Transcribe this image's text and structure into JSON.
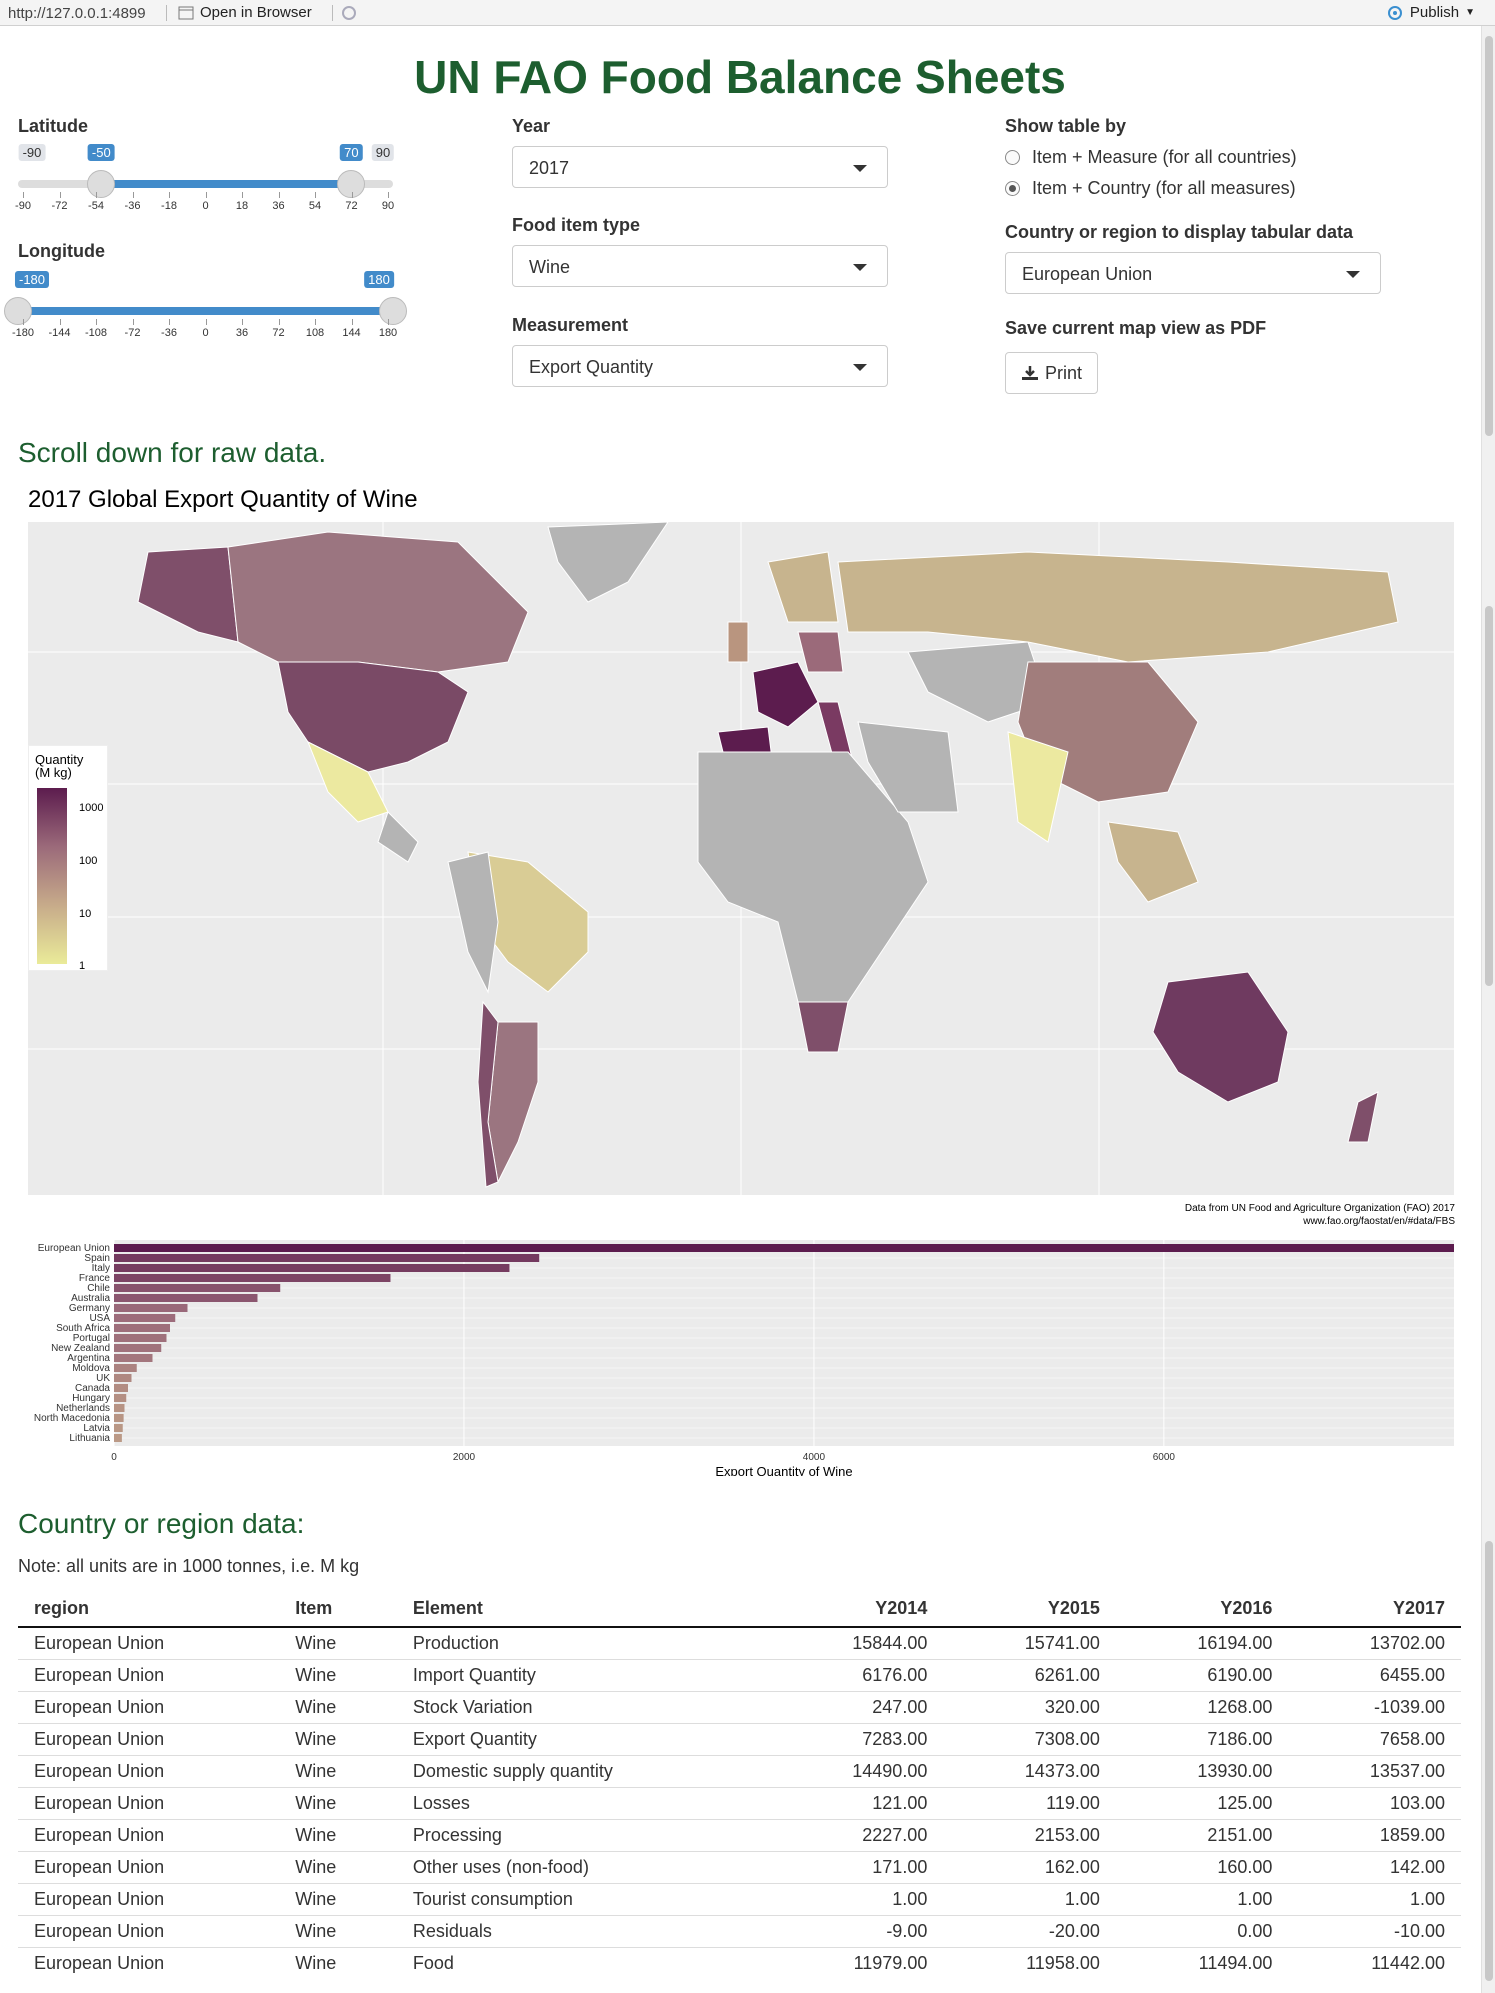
{
  "toolbar": {
    "url": "http://127.0.0.1:4899",
    "open_label": "Open in Browser",
    "publish_label": "Publish"
  },
  "title": "UN FAO Food Balance Sheets",
  "latitude": {
    "label": "Latitude",
    "min": -90,
    "max": 90,
    "low": -50,
    "high": 70,
    "ticks": [
      "-90",
      "-72",
      "-54",
      "-36",
      "-18",
      "0",
      "18",
      "36",
      "54",
      "72",
      "90"
    ],
    "min_label": "-90",
    "max_label": "90",
    "low_label": "-50",
    "high_label": "70"
  },
  "longitude": {
    "label": "Longitude",
    "min": -180,
    "max": 180,
    "low": -180,
    "high": 180,
    "ticks": [
      "-180",
      "-144",
      "-108",
      "-72",
      "-36",
      "0",
      "36",
      "72",
      "108",
      "144",
      "180"
    ],
    "low_label": "-180",
    "high_label": "180"
  },
  "year": {
    "label": "Year",
    "value": "2017"
  },
  "food_item": {
    "label": "Food item type",
    "value": "Wine"
  },
  "measurement": {
    "label": "Measurement",
    "value": "Export Quantity"
  },
  "show_table": {
    "label": "Show table by",
    "options": [
      "Item + Measure (for all countries)",
      "Item + Country (for all measures)"
    ],
    "selected": 1
  },
  "country": {
    "label": "Country or region to display tabular data",
    "value": "European Union"
  },
  "save": {
    "label": "Save current map view as PDF",
    "button": "Print"
  },
  "scroll_note": "Scroll down for raw data.",
  "map": {
    "title": "2017 Global Export Quantity of Wine",
    "caption_line1": "Data from UN Food and Agriculture Organization (FAO) 2017",
    "caption_line2": "www.fao.org/faostat/en/#data/FBS",
    "legend": {
      "title_line1": "Quantity",
      "title_line2": "(M kg)",
      "levels": [
        "1000",
        "100",
        "10",
        "1"
      ]
    },
    "colors": {
      "ocean": "#ebebeb",
      "no_data": "#b4b4b4",
      "high": "#5c1c4e",
      "mid": "#9b6a7a",
      "low": "#c7b48e",
      "lowest": "#eaeb99"
    }
  },
  "chart_data": {
    "type": "bar",
    "orientation": "horizontal",
    "xlabel": "Export Quantity of Wine",
    "xticks": [
      "0",
      "2000",
      "4000",
      "6000"
    ],
    "xlim": [
      0,
      7658
    ],
    "categories": [
      "European Union",
      "Spain",
      "Italy",
      "France",
      "Chile",
      "Australia",
      "Germany",
      "USA",
      "South Africa",
      "Portugal",
      "New Zealand",
      "Argentina",
      "Moldova",
      "UK",
      "Canada",
      "Hungary",
      "Netherlands",
      "North Macedonia",
      "Latvia",
      "Lithuania"
    ],
    "values": [
      7658,
      2430,
      2260,
      1580,
      950,
      820,
      420,
      350,
      320,
      300,
      270,
      220,
      130,
      100,
      80,
      70,
      60,
      55,
      50,
      45
    ]
  },
  "region_section": {
    "title": "Country or region data:",
    "note": "Note: all units are in 1000 tonnes, i.e. M kg"
  },
  "table": {
    "headers": [
      "region",
      "Item",
      "Element",
      "Y2014",
      "Y2015",
      "Y2016",
      "Y2017"
    ],
    "rows": [
      [
        "European Union",
        "Wine",
        "Production",
        "15844.00",
        "15741.00",
        "16194.00",
        "13702.00"
      ],
      [
        "European Union",
        "Wine",
        "Import Quantity",
        "6176.00",
        "6261.00",
        "6190.00",
        "6455.00"
      ],
      [
        "European Union",
        "Wine",
        "Stock Variation",
        "247.00",
        "320.00",
        "1268.00",
        "-1039.00"
      ],
      [
        "European Union",
        "Wine",
        "Export Quantity",
        "7283.00",
        "7308.00",
        "7186.00",
        "7658.00"
      ],
      [
        "European Union",
        "Wine",
        "Domestic supply quantity",
        "14490.00",
        "14373.00",
        "13930.00",
        "13537.00"
      ],
      [
        "European Union",
        "Wine",
        "Losses",
        "121.00",
        "119.00",
        "125.00",
        "103.00"
      ],
      [
        "European Union",
        "Wine",
        "Processing",
        "2227.00",
        "2153.00",
        "2151.00",
        "1859.00"
      ],
      [
        "European Union",
        "Wine",
        "Other uses (non-food)",
        "171.00",
        "162.00",
        "160.00",
        "142.00"
      ],
      [
        "European Union",
        "Wine",
        "Tourist consumption",
        "1.00",
        "1.00",
        "1.00",
        "1.00"
      ],
      [
        "European Union",
        "Wine",
        "Residuals",
        "-9.00",
        "-20.00",
        "0.00",
        "-10.00"
      ],
      [
        "European Union",
        "Wine",
        "Food",
        "11979.00",
        "11958.00",
        "11494.00",
        "11442.00"
      ]
    ]
  }
}
